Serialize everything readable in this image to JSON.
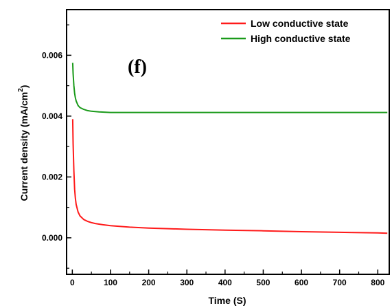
{
  "chart_data": {
    "type": "line",
    "title": "",
    "panel_label": "(f)",
    "xlabel": "Time (S)",
    "ylabel_main": "Current density (mA/cm",
    "ylabel_sup": "2",
    "ylabel_close": ")",
    "xlim": [
      -15,
      830
    ],
    "ylim": [
      -0.0012,
      0.0075
    ],
    "x_ticks": [
      0,
      100,
      200,
      300,
      400,
      500,
      600,
      700,
      800
    ],
    "x_tick_labels": [
      "0",
      "100",
      "200",
      "300",
      "400",
      "500",
      "600",
      "700",
      "800"
    ],
    "y_ticks": [
      0.0,
      0.002,
      0.004,
      0.006
    ],
    "y_tick_labels": [
      "0.000",
      "0.002",
      "0.004",
      "0.006"
    ],
    "grid": false,
    "legend_position": "top-right",
    "series": [
      {
        "name": "Low conductive state",
        "color": "#ff1a1a",
        "x": [
          1,
          2,
          4,
          6,
          8,
          10,
          15,
          20,
          30,
          40,
          50,
          60,
          80,
          100,
          150,
          200,
          250,
          300,
          400,
          500,
          600,
          700,
          800,
          825
        ],
        "y": [
          0.0039,
          0.0031,
          0.0022,
          0.0016,
          0.0013,
          0.0011,
          0.00085,
          0.00072,
          0.0006,
          0.00054,
          0.0005,
          0.00047,
          0.00043,
          0.0004,
          0.00035,
          0.00032,
          0.0003,
          0.00028,
          0.00025,
          0.00023,
          0.0002,
          0.00018,
          0.00016,
          0.00015
        ]
      },
      {
        "name": "High conductive state",
        "color": "#1a9a1a",
        "x": [
          1,
          2,
          4,
          6,
          8,
          10,
          15,
          20,
          30,
          40,
          50,
          70,
          100,
          150,
          200,
          300,
          400,
          500,
          600,
          700,
          800,
          825
        ],
        "y": [
          0.00575,
          0.0054,
          0.005,
          0.00475,
          0.0046,
          0.0045,
          0.00435,
          0.00428,
          0.00422,
          0.00418,
          0.00416,
          0.00414,
          0.00412,
          0.00412,
          0.00412,
          0.00412,
          0.00412,
          0.00412,
          0.00412,
          0.00412,
          0.00412,
          0.00412
        ]
      }
    ]
  }
}
